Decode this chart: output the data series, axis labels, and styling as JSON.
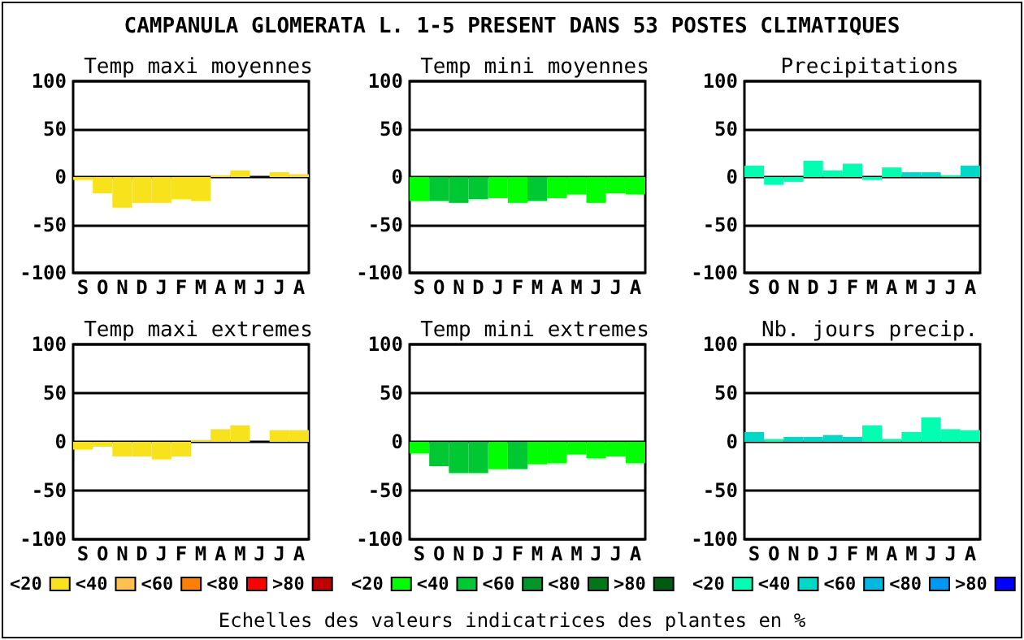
{
  "chart_data": [
    {
      "type": "other",
      "title": "CAMPANULA GLOMERATA L.  1-5 PRESENT DANS  53 POSTES CLIMATIQUES",
      "annotations": [
        "Echelles des valeurs indicatrices des plantes en %"
      ]
    },
    {
      "type": "bar",
      "title": "Temp maxi moyennes",
      "categories": [
        "S",
        "O",
        "N",
        "D",
        "J",
        "F",
        "M",
        "A",
        "M",
        "J",
        "J",
        "A"
      ],
      "stacked": true,
      "ylim": [
        -100,
        100
      ],
      "yticks": [
        -100,
        -50,
        0,
        50,
        100
      ],
      "grid": "y",
      "series": [
        {
          "color": "#f8e21b",
          "values": [
            -3,
            -17,
            -32,
            -27,
            -27,
            -23,
            -25,
            2,
            7,
            0,
            5,
            3
          ]
        }
      ]
    },
    {
      "type": "bar",
      "title": "Temp mini moyennes",
      "categories": [
        "S",
        "O",
        "N",
        "D",
        "J",
        "F",
        "M",
        "A",
        "M",
        "J",
        "J",
        "A"
      ],
      "stacked": true,
      "ylim": [
        -100,
        100
      ],
      "yticks": [
        -100,
        -50,
        0,
        50,
        100
      ],
      "grid": "y",
      "series": [
        {
          "color": "#00ff00",
          "values": [
            -25,
            null,
            null,
            null,
            -22,
            -27,
            null,
            -22,
            -18,
            -27,
            -17,
            -18
          ]
        },
        {
          "color": "#00c832",
          "values": [
            null,
            -25,
            -27,
            -23,
            null,
            null,
            -25,
            null,
            null,
            null,
            null,
            null
          ]
        }
      ]
    },
    {
      "type": "bar",
      "title": "Precipitations",
      "categories": [
        "S",
        "O",
        "N",
        "D",
        "J",
        "F",
        "M",
        "A",
        "M",
        "J",
        "J",
        "A"
      ],
      "stacked": true,
      "ylim": [
        -100,
        100
      ],
      "yticks": [
        -100,
        -50,
        0,
        50,
        100
      ],
      "grid": "y",
      "series": [
        {
          "color": "#00ffb0",
          "values": [
            12,
            -8,
            -5,
            17,
            7,
            14,
            -3,
            10,
            null,
            null,
            2,
            null
          ]
        },
        {
          "color": "#00d8c8",
          "values": [
            null,
            null,
            null,
            null,
            null,
            null,
            null,
            null,
            5,
            5,
            null,
            12
          ]
        }
      ]
    },
    {
      "type": "bar",
      "title": "Temp maxi extremes",
      "categories": [
        "S",
        "O",
        "N",
        "D",
        "J",
        "F",
        "M",
        "A",
        "M",
        "J",
        "J",
        "A"
      ],
      "stacked": true,
      "ylim": [
        -100,
        100
      ],
      "yticks": [
        -100,
        -50,
        0,
        50,
        100
      ],
      "grid": "y",
      "legend": "bottom",
      "series": [
        {
          "name": "<20",
          "color": "#f8e21b",
          "values": [
            -8,
            -5,
            -15,
            -15,
            -18,
            -15,
            2,
            13,
            17,
            0,
            12,
            12
          ]
        },
        {
          "name": "<40",
          "color": "#ffc050",
          "values": [
            null,
            null,
            null,
            null,
            null,
            null,
            null,
            null,
            null,
            null,
            null,
            null
          ]
        },
        {
          "name": "<60",
          "color": "#ff8000",
          "values": [
            null,
            null,
            null,
            null,
            null,
            null,
            null,
            null,
            null,
            null,
            null,
            null
          ]
        },
        {
          "name": "<80",
          "color": "#ff0000",
          "values": [
            null,
            null,
            null,
            null,
            null,
            null,
            null,
            null,
            null,
            null,
            null,
            null
          ]
        },
        {
          "name": ">80",
          "color": "#c00000",
          "values": [
            null,
            null,
            null,
            null,
            null,
            null,
            null,
            null,
            null,
            null,
            null,
            null
          ]
        }
      ]
    },
    {
      "type": "bar",
      "title": "Temp mini extremes",
      "categories": [
        "S",
        "O",
        "N",
        "D",
        "J",
        "F",
        "M",
        "A",
        "M",
        "J",
        "J",
        "A"
      ],
      "stacked": true,
      "ylim": [
        -100,
        100
      ],
      "yticks": [
        -100,
        -50,
        0,
        50,
        100
      ],
      "grid": "y",
      "legend": "bottom",
      "series": [
        {
          "name": "<20",
          "color": "#00ff00",
          "values": [
            -12,
            null,
            null,
            null,
            -28,
            null,
            -23,
            -22,
            -13,
            -17,
            -15,
            -22
          ]
        },
        {
          "name": "<40",
          "color": "#00c832",
          "values": [
            null,
            -25,
            -32,
            -32,
            null,
            -28,
            null,
            null,
            null,
            null,
            null,
            null
          ]
        },
        {
          "name": "<60",
          "color": "#009628",
          "values": [
            null,
            null,
            null,
            null,
            null,
            null,
            null,
            null,
            null,
            null,
            null,
            null
          ]
        },
        {
          "name": "<80",
          "color": "#007818",
          "values": [
            null,
            null,
            null,
            null,
            null,
            null,
            null,
            null,
            null,
            null,
            null,
            null
          ]
        },
        {
          "name": ">80",
          "color": "#005a10",
          "values": [
            null,
            null,
            null,
            null,
            null,
            null,
            null,
            null,
            null,
            null,
            null,
            null
          ]
        }
      ]
    },
    {
      "type": "bar",
      "title": "Nb. jours precip.",
      "categories": [
        "S",
        "O",
        "N",
        "D",
        "J",
        "F",
        "M",
        "A",
        "M",
        "J",
        "J",
        "A"
      ],
      "stacked": true,
      "ylim": [
        -100,
        100
      ],
      "yticks": [
        -100,
        -50,
        0,
        50,
        100
      ],
      "grid": "y",
      "legend": "bottom",
      "series": [
        {
          "name": "<20",
          "color": "#00ffb0",
          "values": [
            null,
            3,
            null,
            null,
            null,
            null,
            17,
            3,
            10,
            25,
            13,
            12
          ]
        },
        {
          "name": "<40",
          "color": "#00d8c8",
          "values": [
            10,
            null,
            5,
            5,
            7,
            5,
            null,
            null,
            null,
            null,
            null,
            null
          ]
        },
        {
          "name": "<60",
          "color": "#00b8e0",
          "values": [
            null,
            null,
            null,
            null,
            null,
            null,
            null,
            null,
            null,
            null,
            null,
            null
          ]
        },
        {
          "name": "<80",
          "color": "#0098f0",
          "values": [
            null,
            null,
            null,
            null,
            null,
            null,
            null,
            null,
            null,
            null,
            null,
            null
          ]
        },
        {
          "name": ">80",
          "color": "#0000ff",
          "values": [
            null,
            null,
            null,
            null,
            null,
            null,
            null,
            null,
            null,
            null,
            null,
            null
          ]
        }
      ]
    }
  ]
}
